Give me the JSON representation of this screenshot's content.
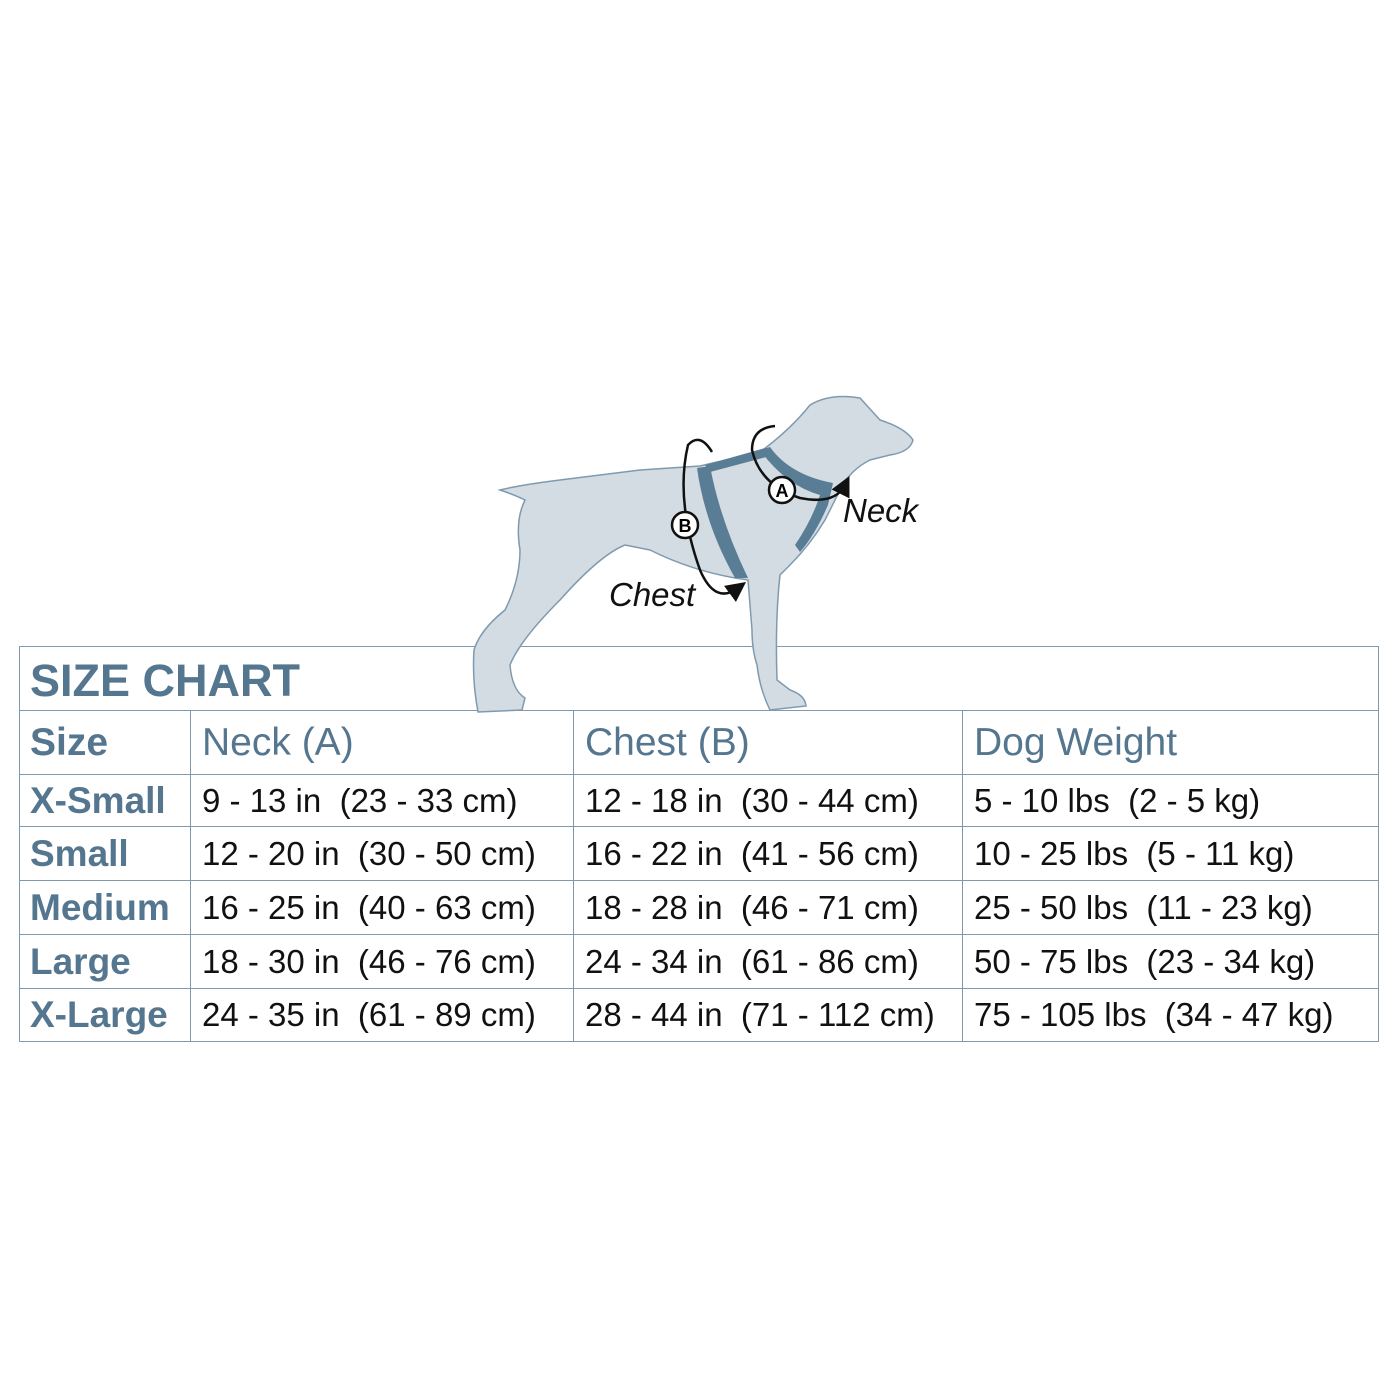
{
  "title": "SIZE CHART",
  "diagram": {
    "neck_label": "Neck",
    "chest_label": "Chest",
    "marker_a": "A",
    "marker_b": "B"
  },
  "headers": [
    "Size",
    "Neck (A)",
    "Chest (B)",
    "Dog Weight"
  ],
  "rows": [
    [
      "X-Small",
      "9 - 13 in  (23 - 33 cm)",
      "12 - 18 in  (30 - 44 cm)",
      "5 - 10 lbs  (2 - 5 kg)"
    ],
    [
      "Small",
      "12 - 20 in  (30 - 50 cm)",
      "16 - 22 in  (41 - 56 cm)",
      "10 - 25 lbs  (5 - 11 kg)"
    ],
    [
      "Medium",
      "16 - 25 in  (40 - 63 cm)",
      "18 - 28 in  (46 - 71 cm)",
      "25 - 50 lbs  (11 - 23 kg)"
    ],
    [
      "Large",
      "18 - 30 in  (46 - 76 cm)",
      "24 - 34 in  (61 - 86 cm)",
      "50 - 75 lbs  (23 - 34 kg)"
    ],
    [
      "X-Large",
      "24 - 35 in  (61 - 89 cm)",
      "28 - 44 in  (71 - 112 cm)",
      "75 - 105 lbs  (34 - 47 kg)"
    ]
  ],
  "colors": {
    "accent": "#55768f",
    "border": "#7f9aae",
    "dog": "#d3dbe3",
    "harness": "#5a7d96"
  }
}
